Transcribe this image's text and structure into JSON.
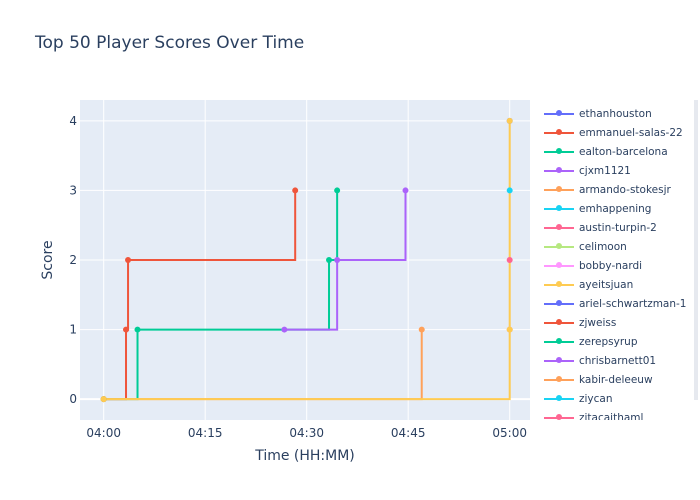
{
  "chart_data": {
    "type": "line",
    "title": "Top 50 Player Scores Over Time",
    "xlabel": "Time (HH:MM)",
    "ylabel": "Score",
    "x_ticks": [
      "04:00",
      "04:15",
      "04:30",
      "04:45",
      "05:00"
    ],
    "x_tick_minutes": [
      0,
      15,
      30,
      45,
      60
    ],
    "xlim_minutes": [
      -3.5,
      63
    ],
    "ylim": [
      -0.3,
      4.3
    ],
    "y_ticks": [
      0,
      1,
      2,
      3,
      4
    ],
    "line_shape": "step-after",
    "grid": true,
    "legend_position": "right",
    "series": [
      {
        "name": "ethanhouston",
        "color": "#636efa",
        "points": [
          {
            "t": "05:00",
            "y": 4
          }
        ]
      },
      {
        "name": "emmanuel-salas-22",
        "color": "#EF553B",
        "points": [
          {
            "t": "04:00",
            "y": 0
          },
          {
            "t": "04:03.3",
            "y": 1
          },
          {
            "t": "04:03.6",
            "y": 2
          },
          {
            "t": "04:28.3",
            "y": 3
          }
        ]
      },
      {
        "name": "ealton-barcelona",
        "color": "#00cc96",
        "points": [
          {
            "t": "04:00",
            "y": 0
          },
          {
            "t": "04:05",
            "y": 1
          },
          {
            "t": "04:33.3",
            "y": 2
          },
          {
            "t": "04:34.5",
            "y": 3
          }
        ]
      },
      {
        "name": "cjxm1121",
        "color": "#ab63fa",
        "points": [
          {
            "t": "04:26.7",
            "y": 1
          },
          {
            "t": "04:34.5",
            "y": 2
          },
          {
            "t": "04:44.6",
            "y": 3
          }
        ]
      },
      {
        "name": "armando-stokesjr",
        "color": "#FFA15A",
        "points": [
          {
            "t": "04:00",
            "y": 0
          },
          {
            "t": "04:47",
            "y": 1
          }
        ]
      },
      {
        "name": "emhappening",
        "color": "#19d3f3",
        "points": [
          {
            "t": "05:00",
            "y": 3
          }
        ]
      },
      {
        "name": "austin-turpin-2",
        "color": "#FF6692",
        "points": [
          {
            "t": "05:00",
            "y": 2
          }
        ]
      },
      {
        "name": "celimoon",
        "color": "#B6E880",
        "points": [
          {
            "t": "05:00",
            "y": 1
          }
        ]
      },
      {
        "name": "bobby-nardi",
        "color": "#FF97FF",
        "points": [
          {
            "t": "05:00",
            "y": 1
          }
        ]
      },
      {
        "name": "ayeitsjuan",
        "color": "#FECB52",
        "points": [
          {
            "t": "04:00",
            "y": 0
          },
          {
            "t": "05:00",
            "y": 1
          },
          {
            "t": "05:00",
            "y": 4
          }
        ]
      },
      {
        "name": "ariel-schwartzman-1",
        "color": "#636efa",
        "points": []
      },
      {
        "name": "zjweiss",
        "color": "#EF553B",
        "points": []
      },
      {
        "name": "zerepsyrup",
        "color": "#00cc96",
        "points": []
      },
      {
        "name": "chrisbarnett01",
        "color": "#ab63fa",
        "points": []
      },
      {
        "name": "kabir-deleeuw",
        "color": "#FFA15A",
        "points": []
      },
      {
        "name": "ziycan",
        "color": "#19d3f3",
        "points": []
      },
      {
        "name": "zitacaithaml",
        "color": "#FF6692",
        "points": []
      }
    ]
  }
}
